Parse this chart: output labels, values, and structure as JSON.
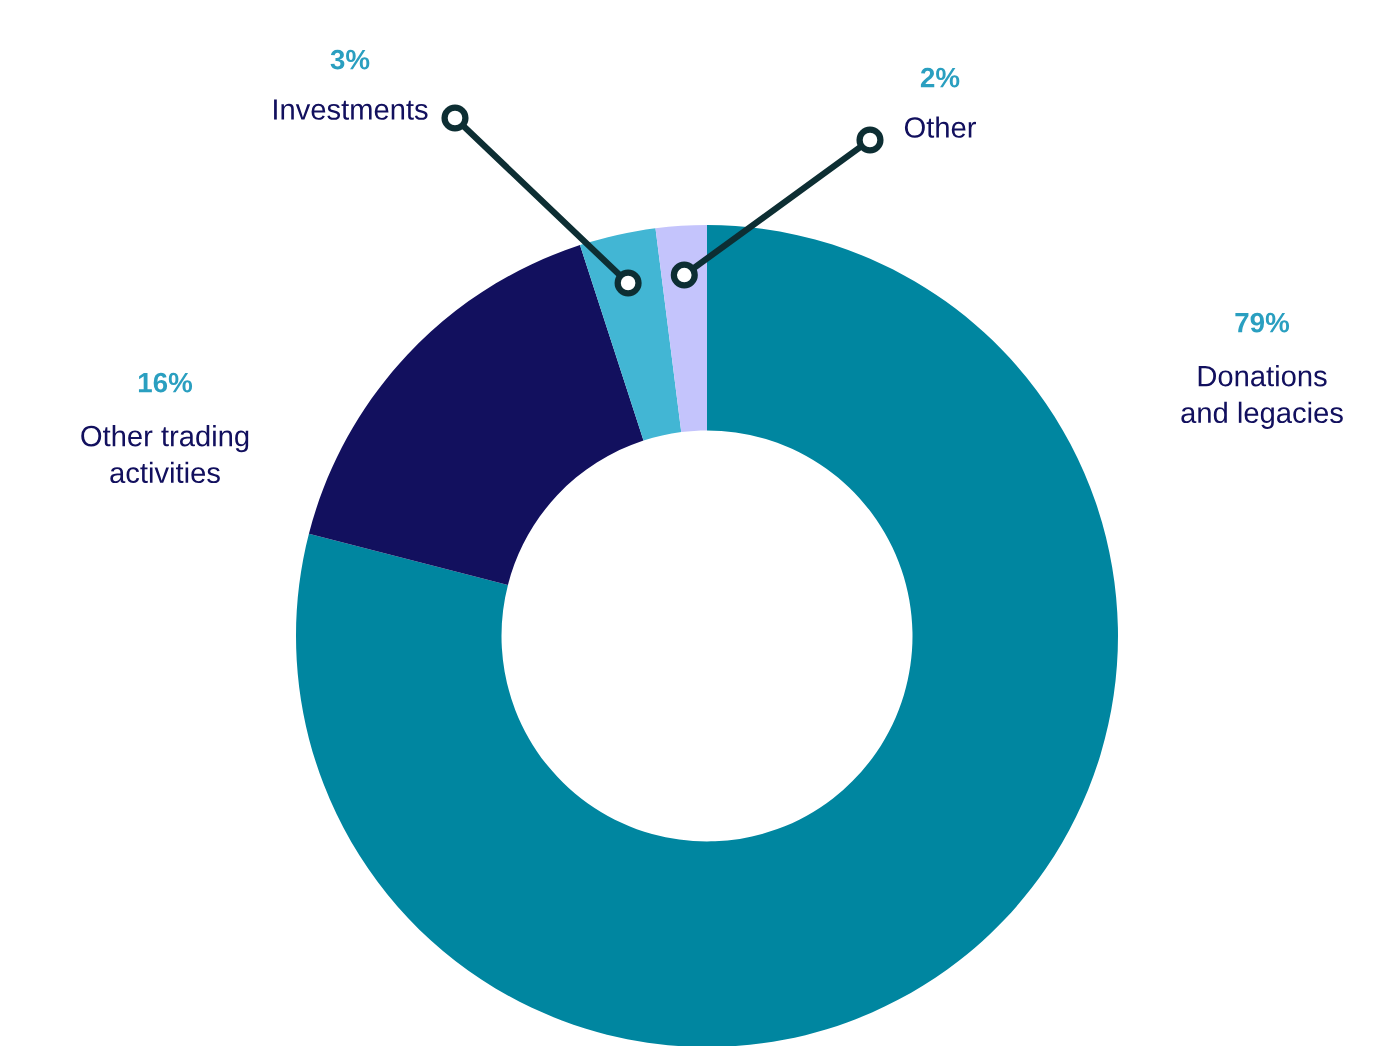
{
  "chart_data": {
    "type": "donut",
    "categories": [
      "Donations\nand legacies",
      "Other trading\nactivities",
      "Investments",
      "Other"
    ],
    "values": [
      79,
      16,
      3,
      2
    ],
    "colors": [
      "#0086a0",
      "#12105e",
      "#42b6d4",
      "#c4c4fc"
    ],
    "value_labels": [
      "79%",
      "16%",
      "3%",
      "2%"
    ],
    "legend": false
  }
}
